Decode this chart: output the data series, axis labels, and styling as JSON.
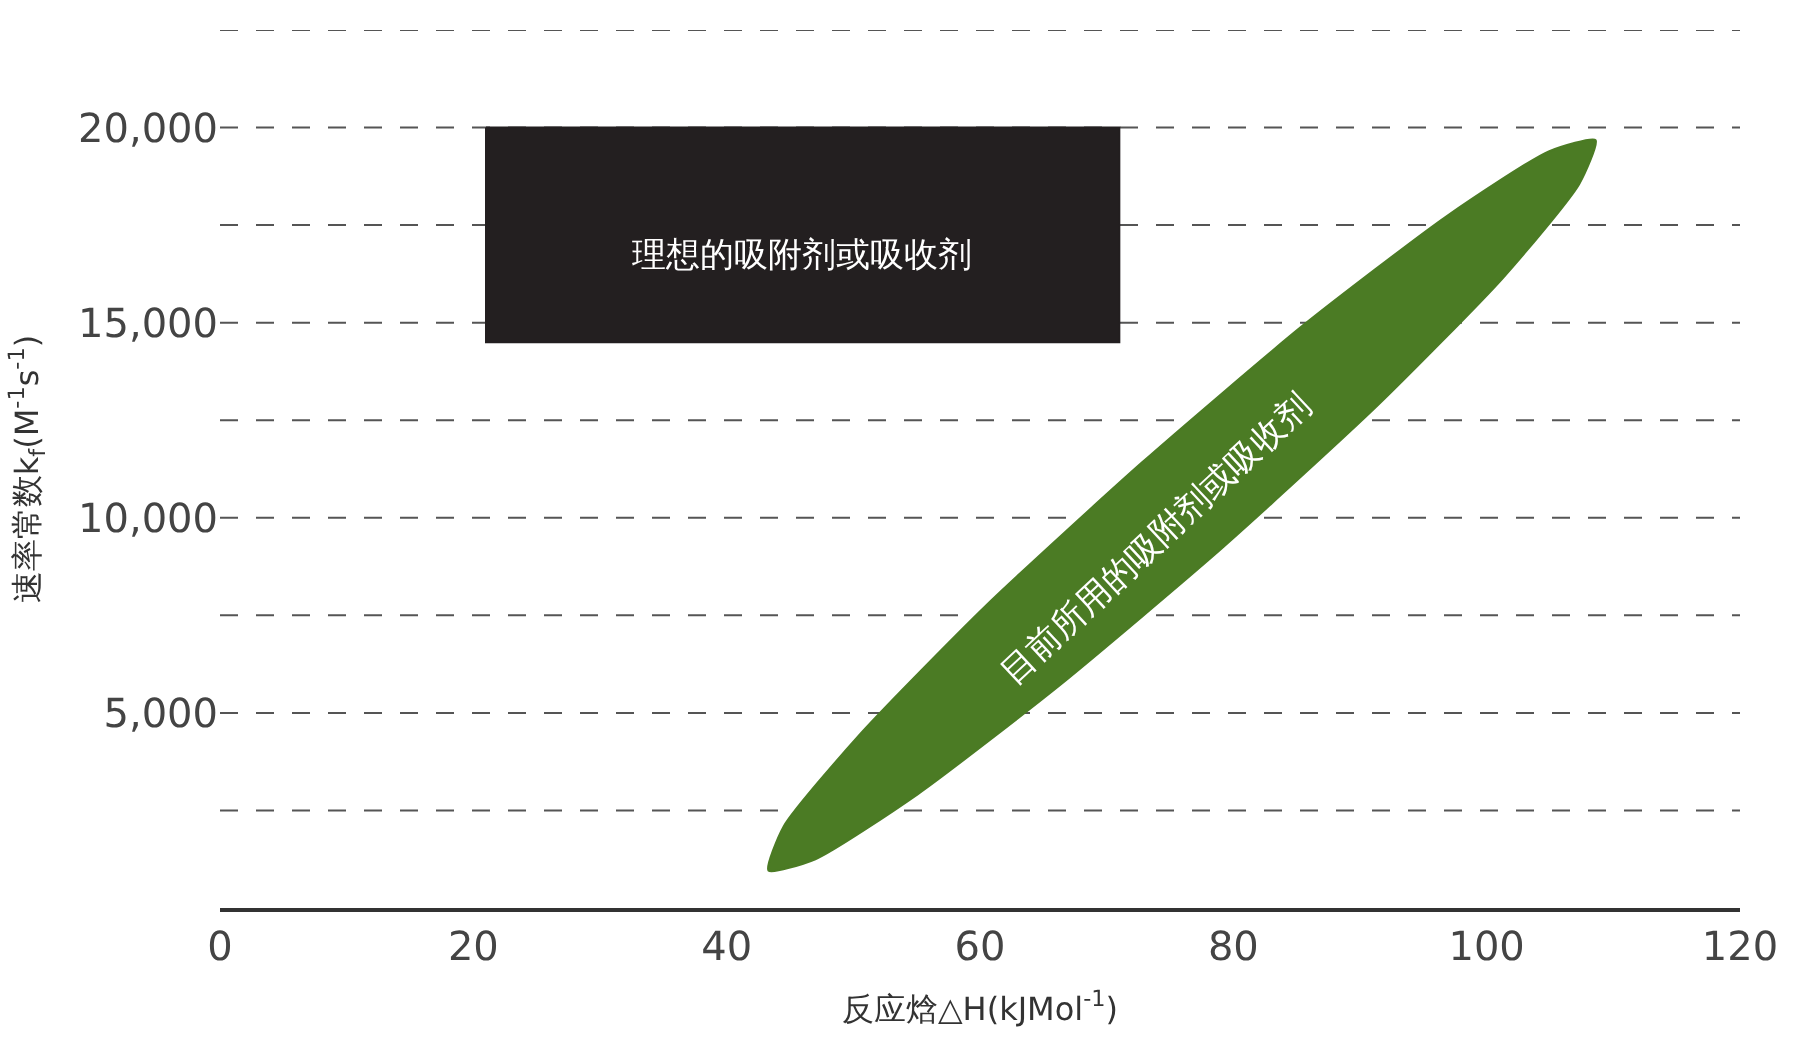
{
  "chart_data": {
    "type": "area",
    "xlabel": "反应焓△H(kJMol$^{-1}$)",
    "ylabel": "速率常数k$_{f}$(M$^{-1}$s$^{-1}$)",
    "xlim": [
      0,
      120
    ],
    "xticks": [
      0,
      20,
      40,
      60,
      80,
      100,
      120
    ],
    "ylim": [
      0,
      22500
    ],
    "yticks": [
      {
        "value": 2500,
        "label": null
      },
      {
        "value": 5000,
        "label": "5,000"
      },
      {
        "value": 7500,
        "label": null
      },
      {
        "value": 10000,
        "label": "10,000"
      },
      {
        "value": 12500,
        "label": null
      },
      {
        "value": 15000,
        "label": "15,000"
      },
      {
        "value": 17500,
        "label": null
      },
      {
        "value": 20000,
        "label": "20,000"
      },
      {
        "value": 22500,
        "label": null
      }
    ],
    "grid": "y",
    "series": [
      {
        "color": "#231f20",
        "x": [
          21,
          71,
          71,
          21,
          21
        ],
        "values": [
          20000,
          20000,
          14500,
          14500,
          20000
        ]
      },
      {
        "color": "#4b7b24",
        "x": [
          108.6,
          107.3,
          101.3,
          91.4,
          79.1,
          66.3,
          55.1,
          47.0,
          43.3,
          44.5,
          50.6,
          60.5,
          72.8,
          85.5,
          96.8,
          104.9,
          108.6
        ],
        "values": [
          19680,
          18550,
          16150,
          12880,
          9220,
          5710,
          2920,
          1250,
          960,
          2090,
          4480,
          7760,
          11420,
          14930,
          17720,
          19390,
          19680
        ]
      }
    ],
    "annotations": [
      "理想的吸附剂或吸收剂",
      "目前所用的吸附剂或吸收剂"
    ]
  }
}
